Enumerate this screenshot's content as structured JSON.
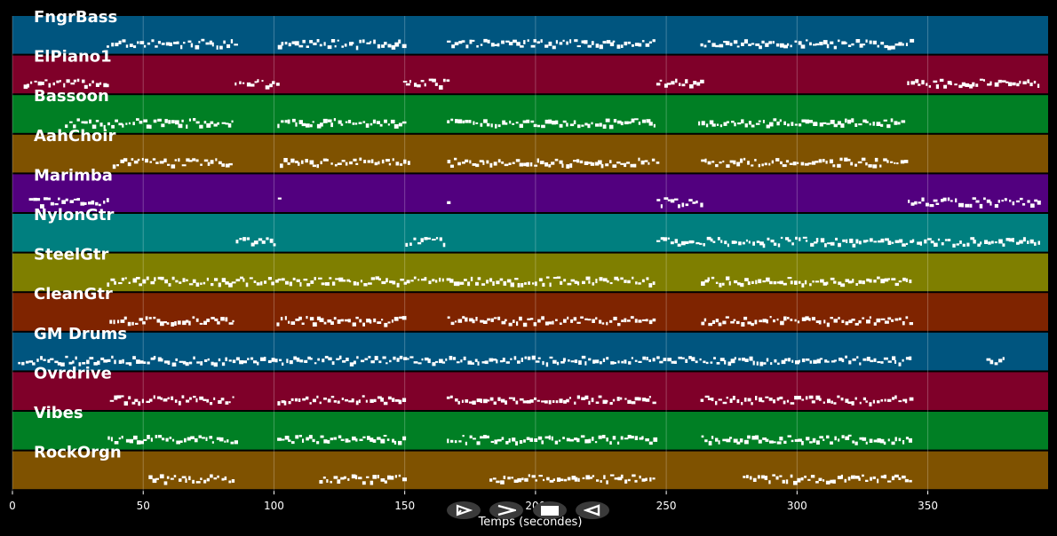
{
  "xlabel": "Temps (secondes)",
  "xlim": [
    0,
    396
  ],
  "ticks": [
    0,
    50,
    100,
    150,
    200,
    250,
    300,
    350
  ],
  "colors": {
    "background": "#000000",
    "grid": "#ffffff",
    "note": "#ffffff",
    "control": "#3a3a3a"
  },
  "tracks": [
    {
      "name": "FngrBass",
      "color": "#00557f",
      "segments": [
        [
          36,
          86
        ],
        [
          101,
          150
        ],
        [
          166,
          246
        ],
        [
          263,
          344
        ]
      ]
    },
    {
      "name": "ElPiano1",
      "color": "#7f0029",
      "segments": [
        [
          4,
          37
        ],
        [
          85,
          102
        ],
        [
          149,
          167
        ],
        [
          246,
          264
        ],
        [
          342,
          393
        ]
      ]
    },
    {
      "name": "Bassoon",
      "color": "#007f24",
      "segments": [
        [
          20,
          36
        ],
        [
          36,
          85
        ],
        [
          101,
          150
        ],
        [
          166,
          246
        ],
        [
          262,
          341
        ]
      ]
    },
    {
      "name": "AahChoir",
      "color": "#7f5200",
      "segments": [
        [
          38,
          84
        ],
        [
          102,
          152
        ],
        [
          166,
          247
        ],
        [
          263,
          342
        ]
      ]
    },
    {
      "name": "Marimba",
      "color": "#52007f",
      "segments": [
        [
          6,
          37
        ],
        [
          101,
          102
        ],
        [
          166,
          167
        ],
        [
          246,
          264
        ],
        [
          342,
          393
        ]
      ]
    },
    {
      "name": "NylonGtr",
      "color": "#007f7f",
      "segments": [
        [
          85,
          101
        ],
        [
          150,
          166
        ],
        [
          246,
          393
        ]
      ]
    },
    {
      "name": "SteelGtr",
      "color": "#7f7f00",
      "segments": [
        [
          36,
          246
        ],
        [
          263,
          344
        ]
      ]
    },
    {
      "name": "CleanGtr",
      "color": "#7f2400",
      "segments": [
        [
          37,
          85
        ],
        [
          101,
          150
        ],
        [
          166,
          246
        ],
        [
          263,
          344
        ]
      ]
    },
    {
      "name": "GM Drums",
      "color": "#00557f",
      "segments": [
        [
          2,
          344
        ],
        [
          372,
          380
        ]
      ]
    },
    {
      "name": "Ovrdrive",
      "color": "#7f0029",
      "segments": [
        [
          37,
          85
        ],
        [
          101,
          150
        ],
        [
          166,
          246
        ],
        [
          263,
          344
        ]
      ]
    },
    {
      "name": "Vibes",
      "color": "#007f24",
      "segments": [
        [
          36,
          86
        ],
        [
          101,
          150
        ],
        [
          166,
          246
        ],
        [
          263,
          344
        ]
      ]
    },
    {
      "name": "RockOrgn",
      "color": "#7f5200",
      "segments": [
        [
          52,
          85
        ],
        [
          117,
          150
        ],
        [
          182,
          246
        ],
        [
          279,
          344
        ]
      ]
    }
  ],
  "controls": [
    {
      "name": "play",
      "symbol": "play-outline-icon"
    },
    {
      "name": "forward",
      "symbol": "forward-icon"
    },
    {
      "name": "stop",
      "symbol": "stop-icon"
    },
    {
      "name": "back",
      "symbol": "back-icon"
    }
  ]
}
